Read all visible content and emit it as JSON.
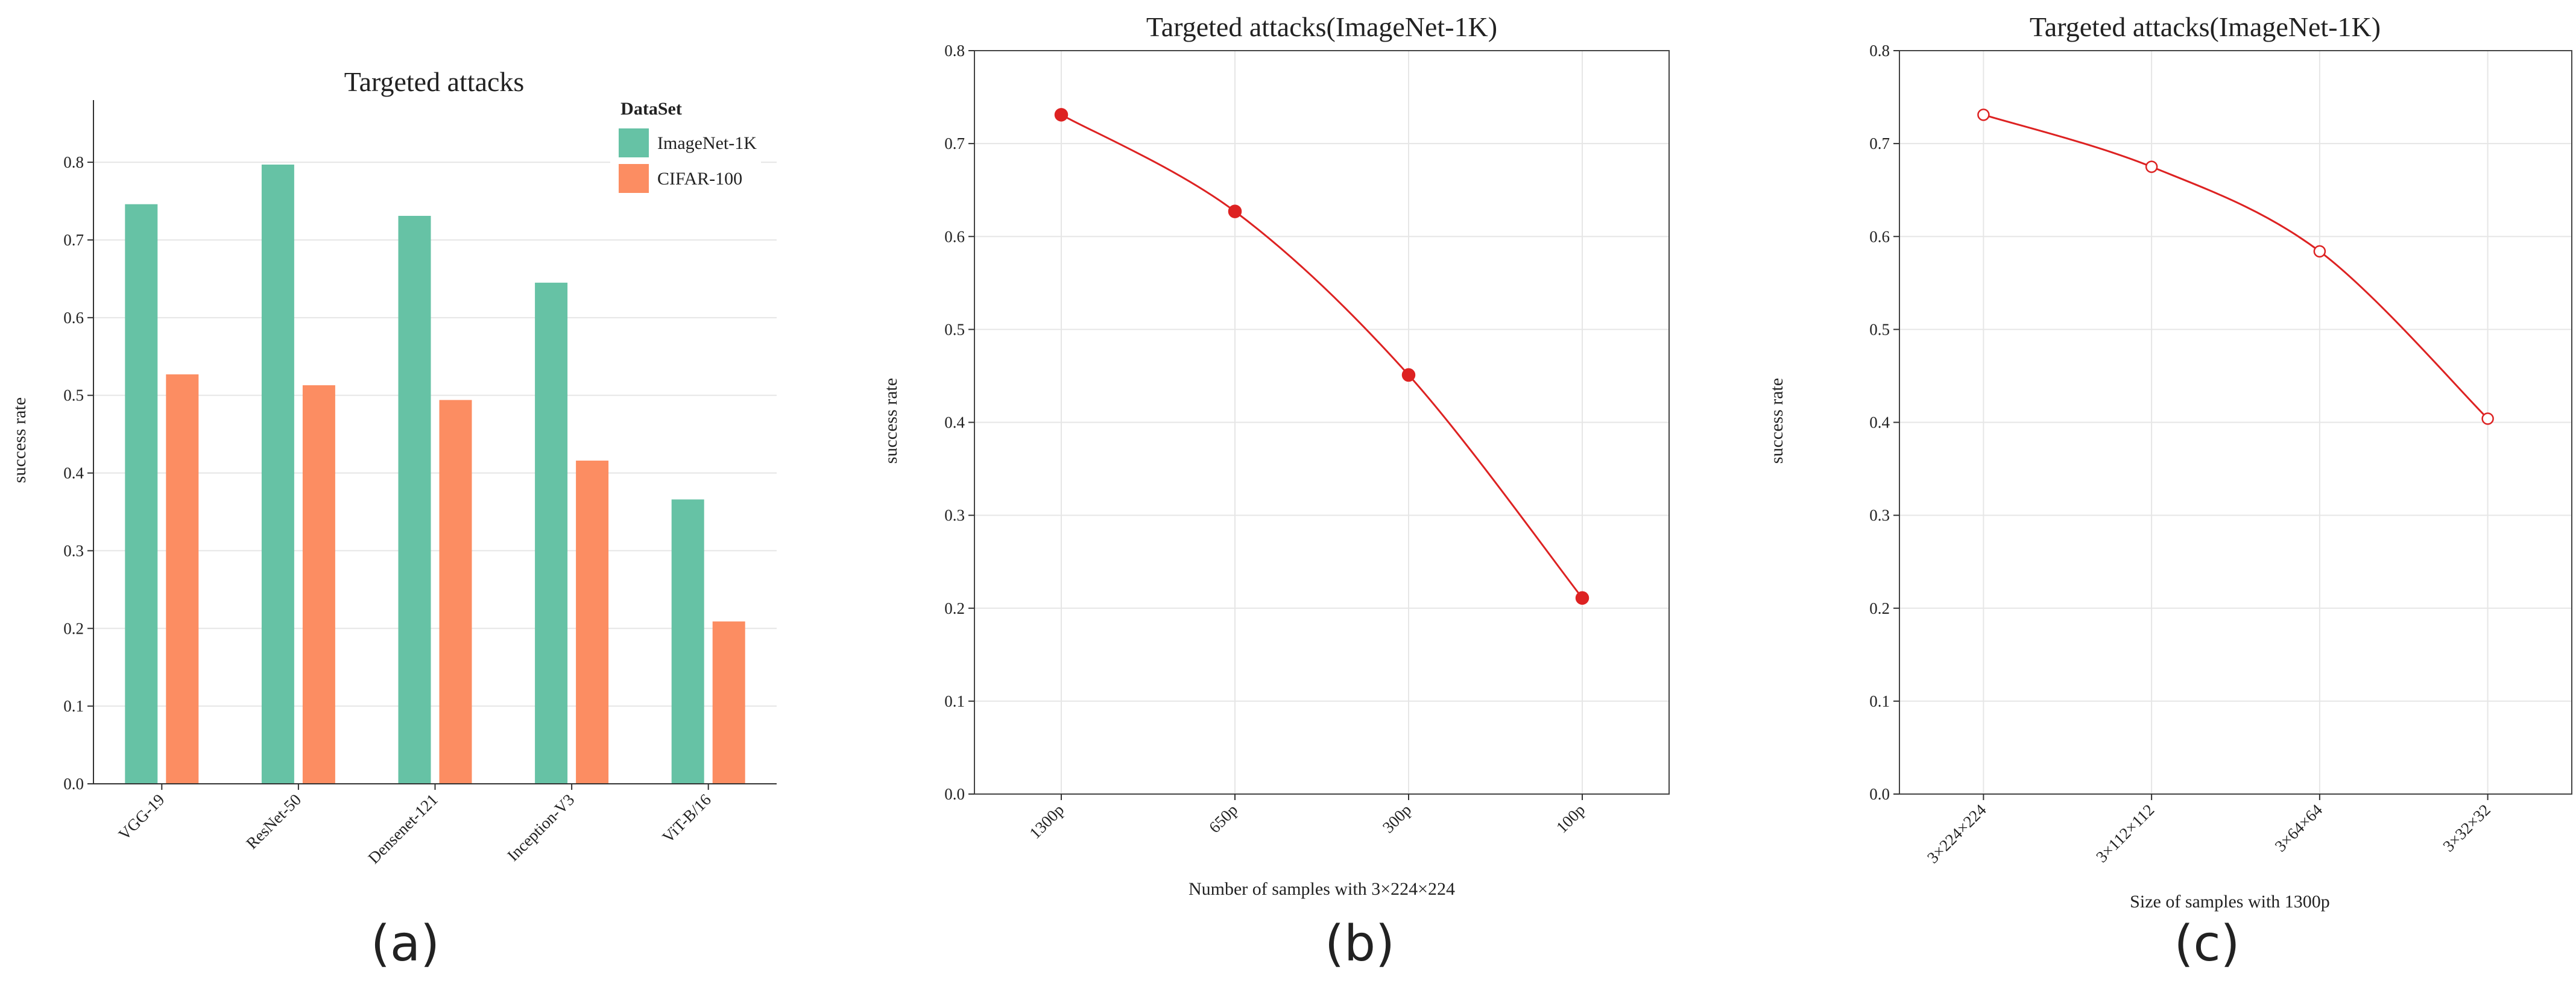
{
  "chart_data": [
    {
      "type": "bar",
      "title": "Targeted attacks",
      "xlabel": "",
      "ylabel": "success rate",
      "ylim": [
        0,
        0.88
      ],
      "yticks": [
        "0.0",
        "0.1",
        "0.2",
        "0.3",
        "0.4",
        "0.5",
        "0.6",
        "0.7",
        "0.8"
      ],
      "categories": [
        "VGG-19",
        "ResNet-50",
        "Densenet-121",
        "Inception-V3",
        "ViT-B/16"
      ],
      "legend": {
        "title": "DataSet",
        "position": "top-right"
      },
      "series": [
        {
          "name": "ImageNet-1K",
          "color": "#66c2a5",
          "values": [
            0.746,
            0.797,
            0.731,
            0.645,
            0.366
          ]
        },
        {
          "name": "CIFAR-100",
          "color": "#fc8d62",
          "values": [
            0.527,
            0.513,
            0.494,
            0.416,
            0.209
          ]
        }
      ],
      "grid": true,
      "panel_label": "(a)"
    },
    {
      "type": "line",
      "title": "Targeted attacks(ImageNet-1K)",
      "xlabel": "Number of samples with 3×224×224",
      "ylabel": "success rate",
      "ylim": [
        0,
        0.8
      ],
      "yticks": [
        "0.0",
        "0.1",
        "0.2",
        "0.3",
        "0.4",
        "0.5",
        "0.6",
        "0.7",
        "0.8"
      ],
      "categories": [
        "1300p",
        "650p",
        "300p",
        "100p"
      ],
      "series": [
        {
          "color": "#dd2222",
          "marker": "filled-circle",
          "values": [
            0.731,
            0.627,
            0.451,
            0.211
          ]
        }
      ],
      "grid": true,
      "panel_label": "(b)"
    },
    {
      "type": "line",
      "title": "Targeted attacks(ImageNet-1K)",
      "xlabel": "Size of samples with 1300p",
      "ylabel": "success rate",
      "ylim": [
        0,
        0.8
      ],
      "yticks": [
        "0.0",
        "0.1",
        "0.2",
        "0.3",
        "0.4",
        "0.5",
        "0.6",
        "0.7",
        "0.8"
      ],
      "categories": [
        "3×224×224",
        "3×112×112",
        "3×64×64",
        "3×32×32"
      ],
      "series": [
        {
          "color": "#dd2222",
          "marker": "hollow-circle",
          "values": [
            0.731,
            0.675,
            0.584,
            0.404
          ]
        }
      ],
      "grid": true,
      "panel_label": "(c)"
    }
  ]
}
